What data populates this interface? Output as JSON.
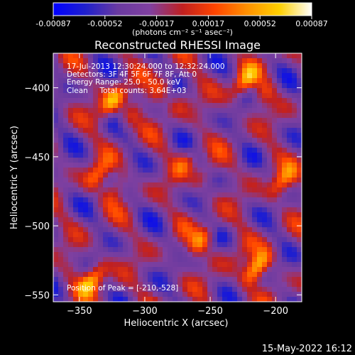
{
  "chart_data": {
    "type": "heatmap",
    "title": "Reconstructed RHESSI Image",
    "xlabel": "Heliocentric X (arcsec)",
    "ylabel": "Heliocentric Y (arcsec)",
    "xlim": [
      -370,
      -180
    ],
    "ylim": [
      -555,
      -375
    ],
    "xticks": [
      -350,
      -300,
      -250,
      -200
    ],
    "yticks": [
      -400,
      -450,
      -500,
      -550
    ],
    "colorbar": {
      "ticks": [
        "-0.00087",
        "-0.00052",
        "-0.00017",
        "0.00017",
        "0.00052",
        "0.00087"
      ],
      "min": -0.00087,
      "max": 0.00087,
      "unit_label": "(photons cm⁻² s⁻¹ asec⁻²)",
      "stops": [
        "#0000ff",
        "#2020cc",
        "#6a3aa0",
        "#8040a0",
        "#c02020",
        "#ff4400",
        "#ff9000",
        "#ffd000",
        "#ffffff"
      ]
    },
    "annotations": [
      "17-Jul-2013 12:30:24.000 to 12:32:24.000",
      "Detectors: 3F 4F 5F 6F 7F 8F, Att 0",
      "Energy Range: 25.0 - 50.0 keV",
      "Clean     Total counts: 3.64E+03"
    ],
    "peak_label": "Position of Peak = [-210,-528]",
    "peak": [
      -210,
      -528
    ],
    "grid": false
  },
  "footer": {
    "timestamp": "15-May-2022 16:12"
  }
}
